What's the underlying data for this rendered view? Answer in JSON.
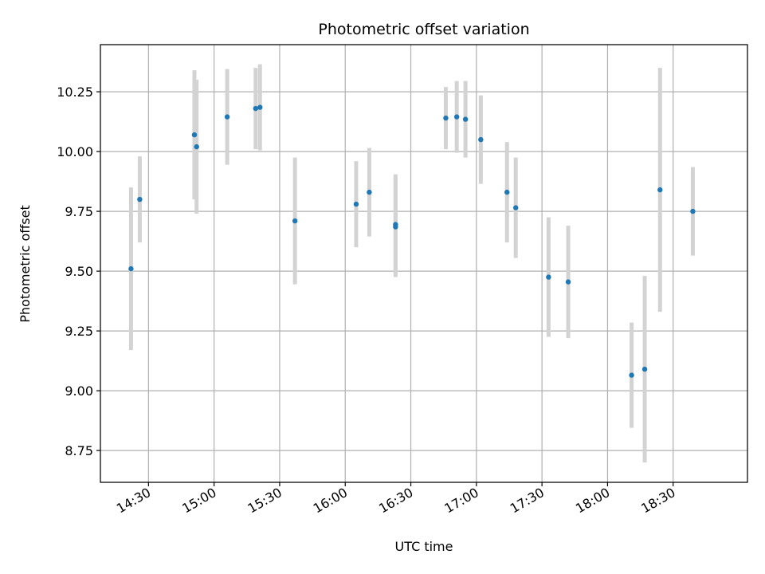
{
  "chart_data": {
    "type": "scatter",
    "title": "Photometric offset variation",
    "xlabel": "UTC time",
    "ylabel": "Photometric offset",
    "grid": true,
    "x_is_time": true,
    "xlim": [
      "14:08",
      "19:04"
    ],
    "ylim": [
      8.617,
      10.447
    ],
    "x_ticks": [
      "14:30",
      "15:00",
      "15:30",
      "16:00",
      "16:30",
      "17:00",
      "17:30",
      "18:00",
      "18:30"
    ],
    "y_ticks": [
      "8.75",
      "9.00",
      "9.25",
      "9.50",
      "9.75",
      "10.00",
      "10.25"
    ],
    "colors": {
      "point": "#1f77b4",
      "errorbar": "#d3d3d3",
      "grid": "#b0b0b0"
    },
    "series": [
      {
        "points": [
          {
            "x": "14:22",
            "y": 9.51,
            "yerr": 0.34
          },
          {
            "x": "14:26",
            "y": 9.8,
            "yerr": 0.18
          },
          {
            "x": "14:51",
            "y": 10.07,
            "yerr": 0.27
          },
          {
            "x": "14:52",
            "y": 10.02,
            "yerr": 0.28
          },
          {
            "x": "15:06",
            "y": 10.145,
            "yerr": 0.2
          },
          {
            "x": "15:19",
            "y": 10.18,
            "yerr": 0.17
          },
          {
            "x": "15:21",
            "y": 10.185,
            "yerr": 0.18
          },
          {
            "x": "15:37",
            "y": 9.71,
            "yerr": 0.265
          },
          {
            "x": "16:05",
            "y": 9.78,
            "yerr": 0.18
          },
          {
            "x": "16:11",
            "y": 9.83,
            "yerr": 0.185
          },
          {
            "x": "16:23",
            "y": 9.695,
            "yerr": 0.21
          },
          {
            "x": "16:23",
            "y": 9.685,
            "yerr": 0.21
          },
          {
            "x": "16:46",
            "y": 10.14,
            "yerr": 0.13
          },
          {
            "x": "16:51",
            "y": 10.145,
            "yerr": 0.15
          },
          {
            "x": "16:55",
            "y": 10.135,
            "yerr": 0.16
          },
          {
            "x": "17:02",
            "y": 10.05,
            "yerr": 0.185
          },
          {
            "x": "17:14",
            "y": 9.83,
            "yerr": 0.21
          },
          {
            "x": "17:18",
            "y": 9.765,
            "yerr": 0.21
          },
          {
            "x": "17:33",
            "y": 9.475,
            "yerr": 0.25
          },
          {
            "x": "17:42",
            "y": 9.455,
            "yerr": 0.235
          },
          {
            "x": "18:11",
            "y": 9.065,
            "yerr": 0.22
          },
          {
            "x": "18:17",
            "y": 9.09,
            "yerr": 0.39
          },
          {
            "x": "18:24",
            "y": 9.84,
            "yerr": 0.51
          },
          {
            "x": "18:39",
            "y": 9.75,
            "yerr": 0.185
          }
        ]
      }
    ]
  }
}
